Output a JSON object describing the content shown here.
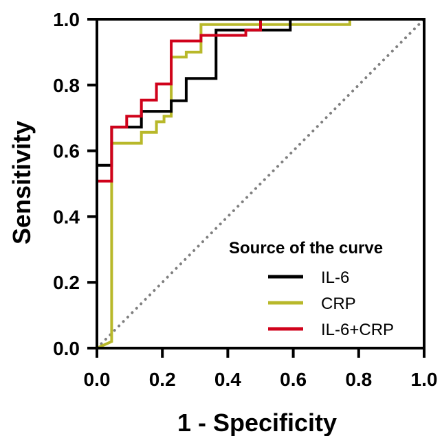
{
  "chart_data": {
    "type": "line",
    "title": "",
    "xlabel": "1 - Specificity",
    "ylabel": "Sensitivity",
    "xlim": [
      0,
      1
    ],
    "ylim": [
      0,
      1
    ],
    "xticks": [
      "0.0",
      "0.2",
      "0.4",
      "0.6",
      "0.8",
      "1.0"
    ],
    "yticks": [
      "0.0",
      "0.2",
      "0.4",
      "0.6",
      "0.8",
      "1.0"
    ],
    "grid": false,
    "legend": {
      "title": "Source of the curve",
      "position": "bottom-right"
    },
    "reference_line": {
      "style": "dotted",
      "color": "#808080",
      "points": [
        [
          0,
          0
        ],
        [
          1,
          1
        ]
      ]
    },
    "series": [
      {
        "name": "IL-6",
        "color": "#000000",
        "points": [
          [
            0,
            0
          ],
          [
            0,
            0.556
          ],
          [
            0.045,
            0.556
          ],
          [
            0.045,
            0.672
          ],
          [
            0.136,
            0.672
          ],
          [
            0.136,
            0.72
          ],
          [
            0.227,
            0.72
          ],
          [
            0.227,
            0.752
          ],
          [
            0.273,
            0.752
          ],
          [
            0.273,
            0.82
          ],
          [
            0.364,
            0.82
          ],
          [
            0.364,
            0.967
          ],
          [
            0.591,
            0.967
          ],
          [
            0.591,
            1.0
          ],
          [
            1,
            1
          ]
        ]
      },
      {
        "name": "CRP",
        "color": "#B8B82A",
        "points": [
          [
            0,
            0
          ],
          [
            0.045,
            0.02
          ],
          [
            0.045,
            0.623
          ],
          [
            0.136,
            0.623
          ],
          [
            0.136,
            0.656
          ],
          [
            0.182,
            0.656
          ],
          [
            0.182,
            0.688
          ],
          [
            0.205,
            0.688
          ],
          [
            0.205,
            0.705
          ],
          [
            0.227,
            0.705
          ],
          [
            0.227,
            0.885
          ],
          [
            0.273,
            0.885
          ],
          [
            0.273,
            0.9
          ],
          [
            0.318,
            0.9
          ],
          [
            0.318,
            0.984
          ],
          [
            0.773,
            0.984
          ],
          [
            0.773,
            1.0
          ],
          [
            1,
            1
          ]
        ]
      },
      {
        "name": "IL-6+CRP",
        "color": "#D0021B",
        "points": [
          [
            0,
            0
          ],
          [
            0,
            0.508
          ],
          [
            0.045,
            0.508
          ],
          [
            0.045,
            0.672
          ],
          [
            0.091,
            0.672
          ],
          [
            0.091,
            0.705
          ],
          [
            0.136,
            0.705
          ],
          [
            0.136,
            0.754
          ],
          [
            0.182,
            0.754
          ],
          [
            0.182,
            0.803
          ],
          [
            0.227,
            0.803
          ],
          [
            0.227,
            0.934
          ],
          [
            0.318,
            0.934
          ],
          [
            0.318,
            0.951
          ],
          [
            0.455,
            0.951
          ],
          [
            0.455,
            0.967
          ],
          [
            0.5,
            0.967
          ],
          [
            0.5,
            1.0
          ],
          [
            1,
            1
          ]
        ]
      }
    ]
  }
}
